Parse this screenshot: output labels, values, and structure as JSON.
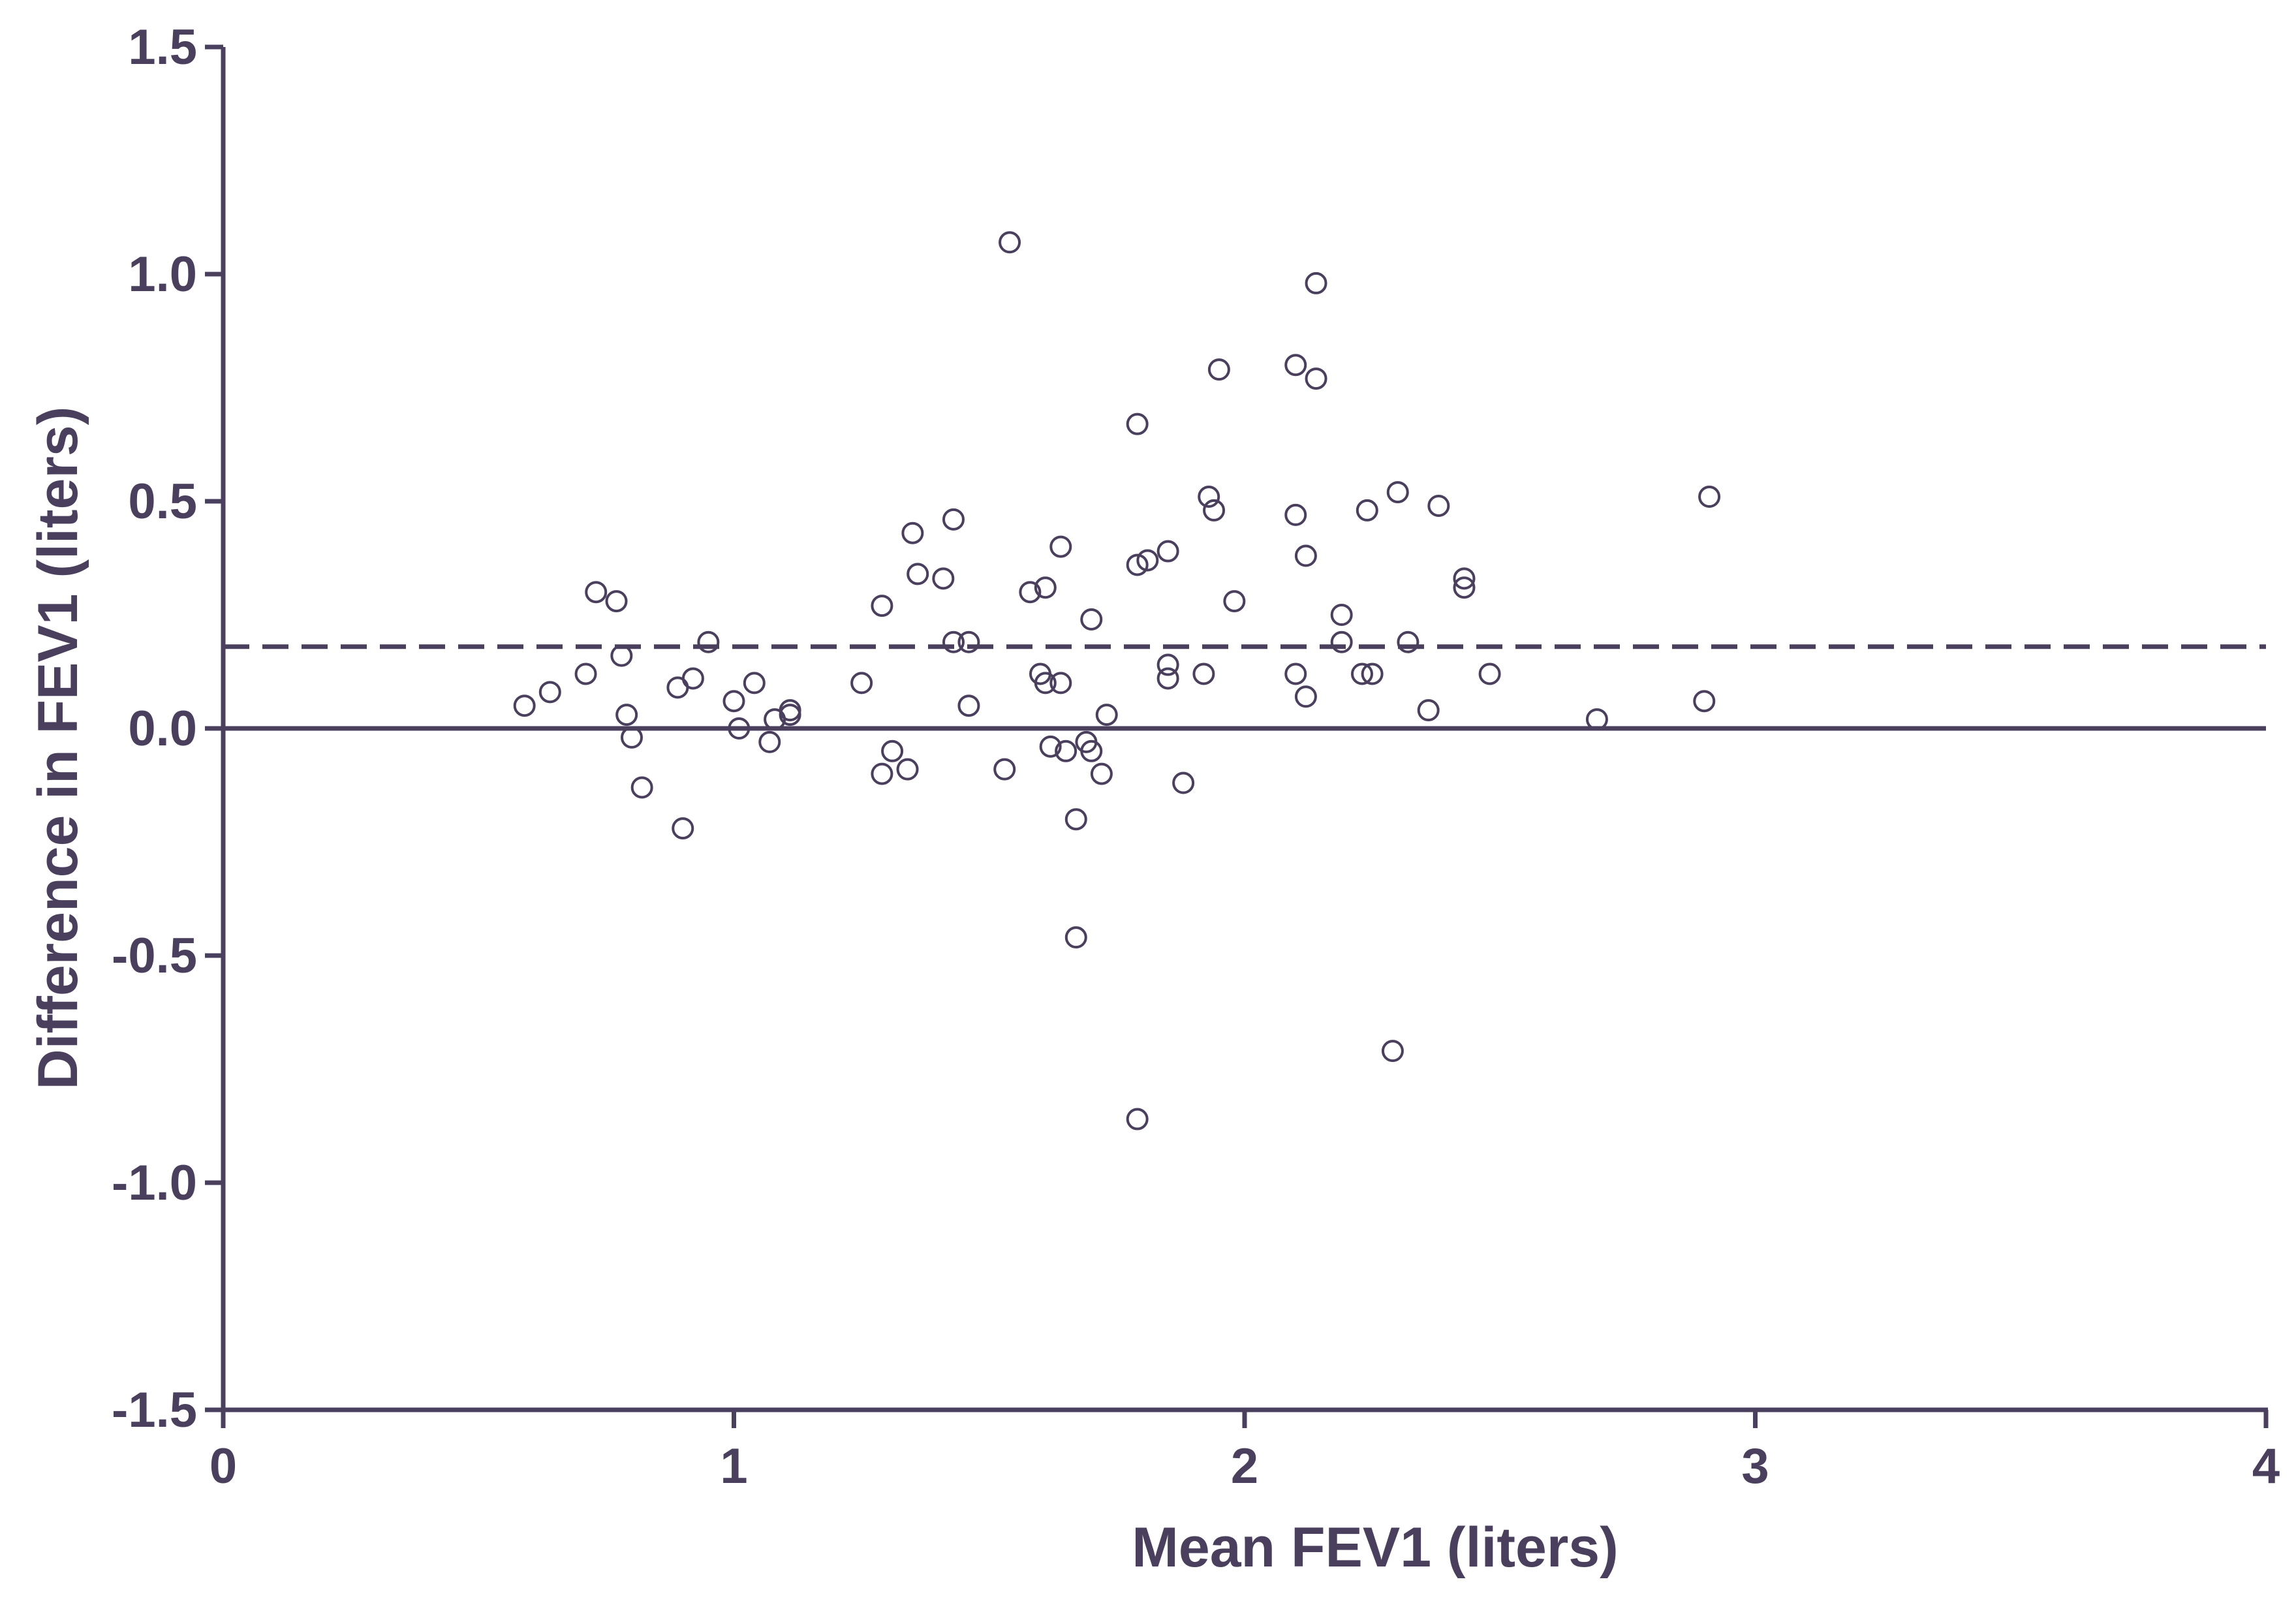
{
  "chart_data": {
    "type": "scatter",
    "title": "",
    "xlabel": "Mean FEV1 (liters)",
    "ylabel": "Difference in FEV1 (liters)",
    "xlim": [
      0,
      4
    ],
    "ylim": [
      -1.5,
      1.5
    ],
    "x_ticks": [
      0,
      1,
      2,
      3,
      4
    ],
    "x_tick_labels": [
      "0",
      "1",
      "2",
      "3",
      "4"
    ],
    "y_ticks": [
      1.5,
      1.0,
      0.5,
      0.0,
      -0.5,
      -1.0,
      -1.5
    ],
    "y_tick_labels": [
      "1.5",
      "1.0",
      "0.5",
      "0.0",
      "-0.5",
      "-1.0",
      "-1.5"
    ],
    "grid": false,
    "marker": "open-circle",
    "colors": {
      "axis": "#4a3f5c",
      "points": "#4a3f5c"
    },
    "reference_lines": [
      {
        "y": 0.0,
        "style": "solid"
      },
      {
        "y": 0.18,
        "style": "dashed"
      }
    ],
    "points": [
      [
        0.59,
        0.05
      ],
      [
        0.64,
        0.08
      ],
      [
        0.71,
        0.12
      ],
      [
        0.73,
        0.3
      ],
      [
        0.77,
        0.28
      ],
      [
        0.78,
        0.16
      ],
      [
        0.79,
        0.03
      ],
      [
        0.8,
        -0.02
      ],
      [
        0.82,
        -0.13
      ],
      [
        0.89,
        0.09
      ],
      [
        0.9,
        -0.22
      ],
      [
        0.92,
        0.11
      ],
      [
        0.95,
        0.19
      ],
      [
        1.0,
        0.06
      ],
      [
        1.01,
        0.0
      ],
      [
        1.04,
        0.1
      ],
      [
        1.07,
        -0.03
      ],
      [
        1.08,
        0.02
      ],
      [
        1.11,
        0.03
      ],
      [
        1.11,
        0.04
      ],
      [
        1.25,
        0.1
      ],
      [
        1.29,
        0.27
      ],
      [
        1.29,
        -0.1
      ],
      [
        1.31,
        -0.05
      ],
      [
        1.34,
        -0.09
      ],
      [
        1.35,
        0.43
      ],
      [
        1.36,
        0.34
      ],
      [
        1.41,
        0.33
      ],
      [
        1.43,
        0.46
      ],
      [
        1.43,
        0.19
      ],
      [
        1.46,
        0.19
      ],
      [
        1.46,
        0.05
      ],
      [
        1.53,
        -0.09
      ],
      [
        1.54,
        1.07
      ],
      [
        1.58,
        0.3
      ],
      [
        1.6,
        0.12
      ],
      [
        1.61,
        0.1
      ],
      [
        1.61,
        0.31
      ],
      [
        1.62,
        -0.04
      ],
      [
        1.64,
        0.4
      ],
      [
        1.64,
        0.1
      ],
      [
        1.65,
        -0.05
      ],
      [
        1.67,
        -0.2
      ],
      [
        1.67,
        -0.46
      ],
      [
        1.69,
        -0.03
      ],
      [
        1.7,
        -0.05
      ],
      [
        1.7,
        0.24
      ],
      [
        1.72,
        -0.1
      ],
      [
        1.73,
        0.03
      ],
      [
        1.79,
        0.67
      ],
      [
        1.79,
        0.36
      ],
      [
        1.79,
        -0.86
      ],
      [
        1.81,
        0.37
      ],
      [
        1.85,
        0.39
      ],
      [
        1.85,
        0.14
      ],
      [
        1.85,
        0.11
      ],
      [
        1.88,
        -0.12
      ],
      [
        1.92,
        0.12
      ],
      [
        1.93,
        0.51
      ],
      [
        1.94,
        0.48
      ],
      [
        1.95,
        0.79
      ],
      [
        1.98,
        0.28
      ],
      [
        2.1,
        0.8
      ],
      [
        2.1,
        0.47
      ],
      [
        2.1,
        0.12
      ],
      [
        2.12,
        0.38
      ],
      [
        2.12,
        0.07
      ],
      [
        2.14,
        0.98
      ],
      [
        2.14,
        0.77
      ],
      [
        2.19,
        0.25
      ],
      [
        2.19,
        0.19
      ],
      [
        2.23,
        0.12
      ],
      [
        2.24,
        0.48
      ],
      [
        2.25,
        0.12
      ],
      [
        2.29,
        -0.71
      ],
      [
        2.3,
        0.52
      ],
      [
        2.32,
        0.19
      ],
      [
        2.36,
        0.04
      ],
      [
        2.38,
        0.49
      ],
      [
        2.43,
        0.33
      ],
      [
        2.43,
        0.31
      ],
      [
        2.48,
        0.12
      ],
      [
        2.69,
        0.02
      ],
      [
        2.9,
        0.06
      ],
      [
        2.91,
        0.51
      ]
    ]
  }
}
